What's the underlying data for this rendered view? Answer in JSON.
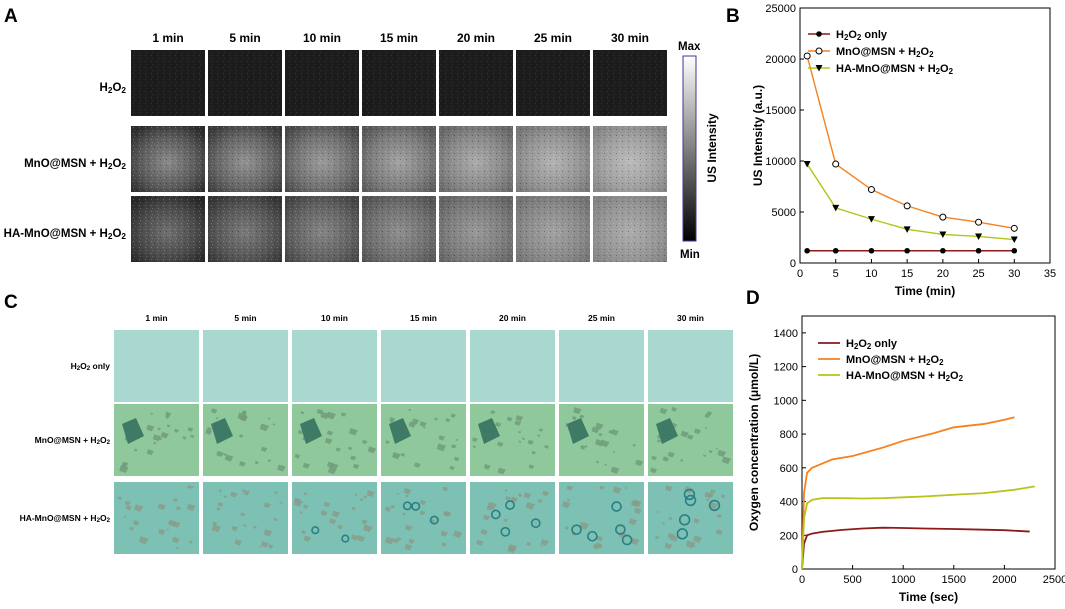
{
  "panels": {
    "A": {
      "letter": "A",
      "time_labels": [
        "1 min",
        "5 min",
        "10 min",
        "15 min",
        "20 min",
        "25 min",
        "30 min"
      ],
      "rows": [
        {
          "pre": "H",
          "sub1": "2",
          "mid": "O",
          "sub2": "2",
          "post": ""
        },
        {
          "pre": "MnO@MSN + H",
          "sub1": "2",
          "mid": "O",
          "sub2": "2",
          "post": ""
        },
        {
          "pre": "HA-MnO@MSN + H",
          "sub1": "2",
          "mid": "O",
          "sub2": "2",
          "post": ""
        }
      ],
      "colorbar": {
        "max_label": "Max",
        "min_label": "Min",
        "title": "US Intensity"
      }
    },
    "C": {
      "letter": "C",
      "time_labels": [
        "1 min",
        "5 min",
        "10 min",
        "15 min",
        "20 min",
        "25 min",
        "30 min"
      ],
      "rows": [
        {
          "pre": "H",
          "sub1": "2",
          "mid": "O",
          "sub2": "2",
          "post": " only"
        },
        {
          "pre": "MnO@MSN + H",
          "sub1": "2",
          "mid": "O",
          "sub2": "2",
          "post": ""
        },
        {
          "pre": "HA-MnO@MSN + H",
          "sub1": "2",
          "mid": "O",
          "sub2": "2",
          "post": ""
        }
      ],
      "colors": {
        "h2o2_only": "#a9d8d0",
        "mno_msn": "#8ec89b",
        "ha_mno_msn": "#7dc1b4"
      }
    }
  },
  "chart_data": [
    {
      "panel": "B",
      "letter": "B",
      "type": "line",
      "xlabel": "Time (min)",
      "ylabel": "US Intensity (a.u.)",
      "xlim": [
        0,
        35
      ],
      "ylim": [
        0,
        25000
      ],
      "xticks": [
        0,
        5,
        10,
        15,
        20,
        25,
        30,
        35
      ],
      "yticks": [
        0,
        5000,
        10000,
        15000,
        20000,
        25000
      ],
      "x": [
        1,
        5,
        10,
        15,
        20,
        25,
        30
      ],
      "series": [
        {
          "key": "h2o2",
          "name_parts": {
            "pre": "H",
            "sub1": "2",
            "mid": "O",
            "sub2": "2",
            "post": " only"
          },
          "color": "#8b1a1a",
          "marker": "circle-filled",
          "values": [
            1200,
            1200,
            1200,
            1200,
            1200,
            1200,
            1200
          ]
        },
        {
          "key": "mno",
          "name_parts": {
            "pre": "MnO@MSN + H",
            "sub1": "2",
            "mid": "O",
            "sub2": "2",
            "post": ""
          },
          "color": "#f5821f",
          "marker": "circle-open",
          "values": [
            20300,
            9700,
            7200,
            5600,
            4500,
            4000,
            3400
          ]
        },
        {
          "key": "ha",
          "name_parts": {
            "pre": "HA-MnO@MSN + H",
            "sub1": "2",
            "mid": "O",
            "sub2": "2",
            "post": ""
          },
          "color": "#b5c416",
          "marker": "triangle-down",
          "values": [
            9700,
            5400,
            4300,
            3300,
            2800,
            2600,
            2300
          ]
        }
      ],
      "legend": "top-right"
    },
    {
      "panel": "D",
      "letter": "D",
      "type": "line",
      "xlabel": "Time (sec)",
      "ylabel": "Oxygen concentration (μmol/L)",
      "xlim": [
        0,
        2500
      ],
      "ylim": [
        0,
        1500
      ],
      "xticks": [
        0,
        500,
        1000,
        1500,
        2000,
        2500
      ],
      "yticks": [
        0,
        200,
        400,
        600,
        800,
        1000,
        1200,
        1400
      ],
      "series": [
        {
          "key": "h2o2",
          "name_parts": {
            "pre": "H",
            "sub1": "2",
            "mid": "O",
            "sub2": "2",
            "post": " only"
          },
          "color": "#8b1a1a",
          "x": [
            0,
            20,
            50,
            100,
            200,
            400,
            600,
            800,
            1000,
            1200,
            1500,
            1800,
            2000,
            2250
          ],
          "values": [
            0,
            150,
            200,
            210,
            220,
            232,
            240,
            245,
            243,
            240,
            237,
            233,
            230,
            222
          ]
        },
        {
          "key": "mno",
          "name_parts": {
            "pre": "MnO@MSN + H",
            "sub1": "2",
            "mid": "O",
            "sub2": "2",
            "post": ""
          },
          "color": "#f5821f",
          "x": [
            0,
            20,
            50,
            100,
            200,
            300,
            500,
            800,
            1000,
            1300,
            1500,
            1800,
            2000,
            2100
          ],
          "values": [
            0,
            450,
            570,
            600,
            625,
            650,
            670,
            720,
            760,
            805,
            840,
            860,
            885,
            900
          ]
        },
        {
          "key": "ha",
          "name_parts": {
            "pre": "HA-MnO@MSN + H",
            "sub1": "2",
            "mid": "O",
            "sub2": "2",
            "post": ""
          },
          "color": "#b5c416",
          "x": [
            0,
            20,
            50,
            100,
            200,
            400,
            600,
            800,
            1000,
            1200,
            1500,
            1800,
            2100,
            2300
          ],
          "values": [
            0,
            300,
            390,
            410,
            420,
            420,
            418,
            420,
            425,
            430,
            440,
            450,
            470,
            490
          ]
        }
      ],
      "legend": "top-right"
    }
  ]
}
